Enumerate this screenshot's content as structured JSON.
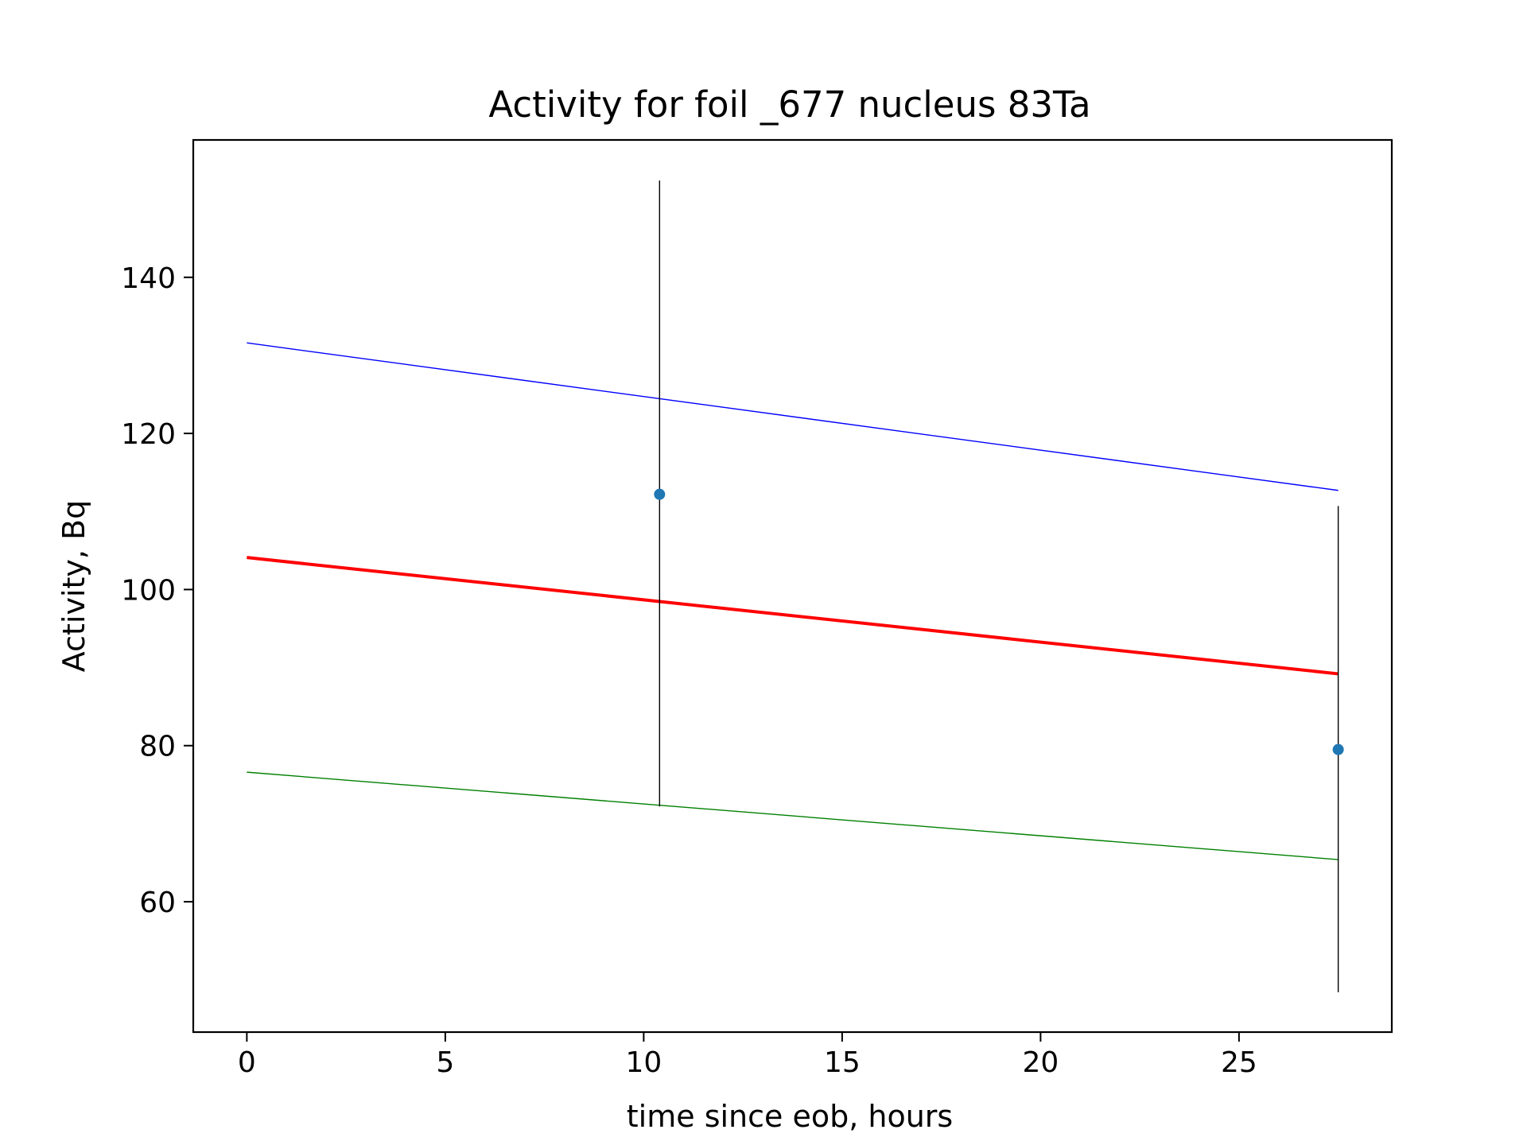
{
  "chart_data": {
    "type": "scatter",
    "title": "Activity for foil _677 nucleus 83Ta",
    "xlabel": "time since eob, hours",
    "ylabel": "Activity, Bq",
    "xlim": [
      -1.35,
      28.85
    ],
    "ylim": [
      43.3,
      157.6
    ],
    "xticks": [
      0,
      5,
      10,
      15,
      20,
      25
    ],
    "yticks": [
      60,
      80,
      100,
      120,
      140
    ],
    "grid": false,
    "points": [
      {
        "x": 10.4,
        "y": 112.2,
        "ylow": 72.2,
        "yhigh": 152.4
      },
      {
        "x": 27.5,
        "y": 79.5,
        "ylow": 48.4,
        "yhigh": 110.7
      }
    ],
    "lines": [
      {
        "x": [
          0,
          27.5
        ],
        "y": [
          131.6,
          112.7
        ],
        "color": "#0000ff",
        "role": "upper"
      },
      {
        "x": [
          0,
          27.5
        ],
        "y": [
          104.1,
          89.2
        ],
        "color": "#ff0000",
        "role": "fit"
      },
      {
        "x": [
          0,
          27.5
        ],
        "y": [
          76.6,
          65.4
        ],
        "color": "#008000",
        "role": "lower"
      }
    ],
    "colors": {
      "points": "#1f77b4",
      "errorbars": "#000000"
    }
  }
}
